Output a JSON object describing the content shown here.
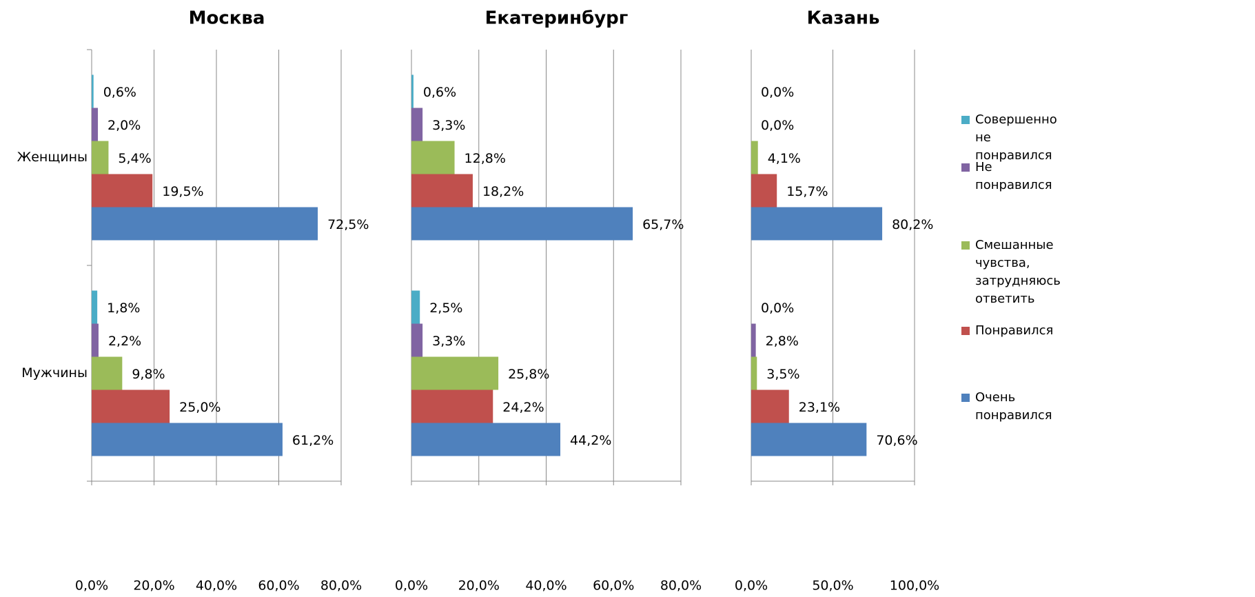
{
  "chart_data": [
    {
      "type": "bar",
      "orientation": "horizontal",
      "title": "Москва",
      "categories": [
        "Женщины",
        "Мужчины"
      ],
      "xlim": [
        0,
        80
      ],
      "xticks": [
        {
          "value": 0,
          "label": "0,0%"
        },
        {
          "value": 20,
          "label": "20,0%"
        },
        {
          "value": 40,
          "label": "40,0%"
        },
        {
          "value": 60,
          "label": "60,0%"
        },
        {
          "value": 80,
          "label": "80,0%"
        }
      ],
      "grid": true,
      "series": [
        {
          "name": "Совершенно не понравился",
          "color": "#4bacc6",
          "values": [
            0.6,
            1.8
          ],
          "value_labels": [
            "0,6%",
            "1,8%"
          ]
        },
        {
          "name": "Не понравился",
          "color": "#8064a2",
          "values": [
            2.0,
            2.2
          ],
          "value_labels": [
            "2,0%",
            "2,2%"
          ]
        },
        {
          "name": "Смешанные чувства, затрудняюсь ответить",
          "color": "#9bbb59",
          "values": [
            5.4,
            9.8
          ],
          "value_labels": [
            "5,4%",
            "9,8%"
          ]
        },
        {
          "name": "Понравился",
          "color": "#c0504d",
          "values": [
            19.5,
            25.0
          ],
          "value_labels": [
            "19,5%",
            "25,0%"
          ]
        },
        {
          "name": "Очень понравился",
          "color": "#4f81bd",
          "values": [
            72.5,
            61.2
          ],
          "value_labels": [
            "72,5%",
            "61,2%"
          ]
        }
      ]
    },
    {
      "type": "bar",
      "orientation": "horizontal",
      "title": "Екатеринбург",
      "xlim": [
        0,
        80
      ],
      "xticks": [
        {
          "value": 0,
          "label": "0,0%"
        },
        {
          "value": 20,
          "label": "20,0%"
        },
        {
          "value": 40,
          "label": "40,0%"
        },
        {
          "value": 60,
          "label": "60,0%"
        },
        {
          "value": 80,
          "label": "80,0%"
        }
      ],
      "grid": true,
      "series": [
        {
          "color": "#4bacc6",
          "values": [
            0.6,
            2.5
          ],
          "value_labels": [
            "0,6%",
            "2,5%"
          ]
        },
        {
          "color": "#8064a2",
          "values": [
            3.3,
            3.3
          ],
          "value_labels": [
            "3,3%",
            "3,3%"
          ]
        },
        {
          "color": "#9bbb59",
          "values": [
            12.8,
            25.8
          ],
          "value_labels": [
            "12,8%",
            "25,8%"
          ]
        },
        {
          "color": "#c0504d",
          "values": [
            18.2,
            24.2
          ],
          "value_labels": [
            "18,2%",
            "24,2%"
          ]
        },
        {
          "color": "#4f81bd",
          "values": [
            65.7,
            44.2
          ],
          "value_labels": [
            "65,7%",
            "44,2%"
          ]
        }
      ]
    },
    {
      "type": "bar",
      "orientation": "horizontal",
      "title": "Казань",
      "xlim": [
        0,
        100
      ],
      "xticks": [
        {
          "value": 0,
          "label": "0,0%"
        },
        {
          "value": 50,
          "label": "50,0%"
        },
        {
          "value": 100,
          "label": "100,0%"
        }
      ],
      "grid": true,
      "series": [
        {
          "color": "#4bacc6",
          "values": [
            0.0,
            0.0
          ],
          "value_labels": [
            "0,0%",
            "0,0%"
          ]
        },
        {
          "color": "#8064a2",
          "values": [
            0.0,
            2.8
          ],
          "value_labels": [
            "0,0%",
            "2,8%"
          ]
        },
        {
          "color": "#9bbb59",
          "values": [
            4.1,
            3.5
          ],
          "value_labels": [
            "4,1%",
            "3,5%"
          ]
        },
        {
          "color": "#c0504d",
          "values": [
            15.7,
            23.1
          ],
          "value_labels": [
            "15,7%",
            "23,1%"
          ]
        },
        {
          "color": "#4f81bd",
          "values": [
            80.2,
            70.6
          ],
          "value_labels": [
            "80,2%",
            "70,6%"
          ]
        }
      ]
    }
  ]
}
